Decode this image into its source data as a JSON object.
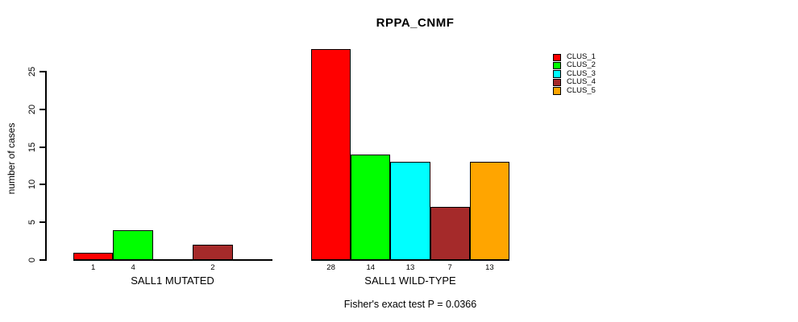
{
  "title": "RPPA_CNMF",
  "footer": "Fisher's exact test P = 0.0366",
  "y_axis": {
    "label": "number of cases",
    "ticks": [
      "0",
      "5",
      "10",
      "15",
      "20",
      "25"
    ]
  },
  "legend": {
    "entries": [
      {
        "label": "CLUS_1",
        "color": "#FF0000"
      },
      {
        "label": "CLUS_2",
        "color": "#00FF00"
      },
      {
        "label": "CLUS_3",
        "color": "#00FFFF"
      },
      {
        "label": "CLUS_4",
        "color": "#A52A2A"
      },
      {
        "label": "CLUS_5",
        "color": "#FFA500"
      }
    ]
  },
  "chart_data": {
    "type": "bar",
    "title": "RPPA_CNMF",
    "xlabel": "",
    "ylabel": "number of cases",
    "ylim": [
      0,
      28
    ],
    "yticks": [
      0,
      5,
      10,
      15,
      20,
      25
    ],
    "grid": false,
    "legend_position": "top-right",
    "categories": [
      "CLUS_1",
      "CLUS_2",
      "CLUS_3",
      "CLUS_4",
      "CLUS_5"
    ],
    "colors": [
      "#FF0000",
      "#00FF00",
      "#00FFFF",
      "#A52A2A",
      "#FFA500"
    ],
    "groups": [
      {
        "label": "SALL1 MUTATED",
        "values": [
          1,
          4,
          0,
          2,
          0
        ],
        "bar_labels": [
          "1",
          "4",
          "",
          "2",
          ""
        ]
      },
      {
        "label": "SALL1 WILD-TYPE",
        "values": [
          28,
          14,
          13,
          7,
          13
        ],
        "bar_labels": [
          "28",
          "14",
          "13",
          "7",
          "13"
        ]
      }
    ],
    "annotation": "Fisher's exact test P = 0.0366"
  }
}
